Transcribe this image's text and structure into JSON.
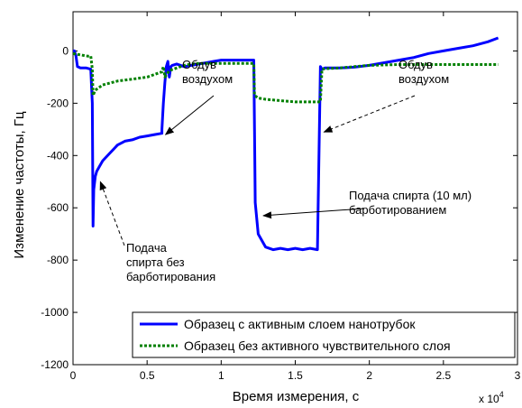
{
  "chart_data": {
    "type": "line",
    "title": "",
    "xlabel": "Время измерения, с",
    "ylabel": "Изменение частоты, Гц",
    "x_multiplier_label": "x 10",
    "x_multiplier_exp": "4",
    "xlim": [
      0,
      3
    ],
    "ylim": [
      -1200,
      150
    ],
    "x_ticks": [
      0,
      0.5,
      1,
      1.5,
      2,
      2.5,
      3
    ],
    "x_tick_labels": [
      "0",
      "0.5",
      "1",
      "1.5",
      "2",
      "2.5",
      "3"
    ],
    "y_ticks": [
      -1200,
      -1000,
      -800,
      -600,
      -400,
      -200,
      0
    ],
    "y_tick_labels": [
      "-1200",
      "-1000",
      "-800",
      "-600",
      "-400",
      "-200",
      "0"
    ],
    "grid": false,
    "legend_position": "bottom-right",
    "series": [
      {
        "name": "Образец с активным слоем нанотрубок",
        "color": "#0000ff",
        "style": "solid",
        "x": [
          0,
          0.01,
          0.02,
          0.03,
          0.05,
          0.09,
          0.12,
          0.13,
          0.135,
          0.14,
          0.15,
          0.16,
          0.18,
          0.2,
          0.25,
          0.3,
          0.35,
          0.4,
          0.45,
          0.5,
          0.55,
          0.6,
          0.6,
          0.61,
          0.62,
          0.63,
          0.64,
          0.65,
          0.66,
          0.67,
          0.7,
          0.75,
          0.8,
          0.85,
          0.9,
          0.95,
          1,
          1.05,
          1.1,
          1.2,
          1.22,
          1.225,
          1.23,
          1.25,
          1.3,
          1.35,
          1.4,
          1.45,
          1.5,
          1.55,
          1.6,
          1.65,
          1.67,
          1.68,
          1.7,
          1.8,
          1.9,
          2,
          2.1,
          2.2,
          2.3,
          2.4,
          2.5,
          2.6,
          2.7,
          2.8,
          2.87
        ],
        "values": [
          0,
          0,
          -20,
          -60,
          -65,
          -65,
          -70,
          -200,
          -670,
          -530,
          -480,
          -460,
          -440,
          -420,
          -390,
          -360,
          -345,
          -340,
          -330,
          -325,
          -320,
          -315,
          -300,
          -200,
          -120,
          -60,
          -40,
          -100,
          -60,
          -55,
          -50,
          -60,
          -55,
          -50,
          -45,
          -40,
          -35,
          -35,
          -35,
          -35,
          -35,
          -300,
          -580,
          -700,
          -750,
          -760,
          -755,
          -760,
          -755,
          -760,
          -755,
          -760,
          -60,
          -70,
          -65,
          -65,
          -62,
          -55,
          -45,
          -35,
          -25,
          -10,
          0,
          10,
          20,
          35,
          50
        ]
      },
      {
        "name": "Образец без активного чувствительного слоя",
        "color": "#008000",
        "style": "dotted",
        "x": [
          0,
          0.05,
          0.1,
          0.12,
          0.13,
          0.135,
          0.15,
          0.2,
          0.3,
          0.4,
          0.5,
          0.55,
          0.6,
          0.61,
          0.62,
          0.65,
          0.7,
          0.75,
          0.8,
          0.85,
          0.9,
          1,
          1.1,
          1.2,
          1.22,
          1.225,
          1.25,
          1.3,
          1.4,
          1.5,
          1.6,
          1.65,
          1.67,
          1.68,
          1.7,
          1.8,
          1.9,
          2,
          2.2,
          2.4,
          2.6,
          2.87
        ],
        "values": [
          -10,
          -15,
          -20,
          -20,
          -70,
          -170,
          -150,
          -130,
          -115,
          -108,
          -100,
          -90,
          -80,
          -60,
          -100,
          -75,
          -65,
          -55,
          -50,
          -48,
          -48,
          -48,
          -48,
          -48,
          -48,
          -170,
          -180,
          -185,
          -190,
          -195,
          -195,
          -195,
          -195,
          -70,
          -68,
          -65,
          -60,
          -55,
          -52,
          -52,
          -52,
          -52
        ]
      }
    ],
    "annotations": [
      {
        "lines": [
          "Обдув",
          "воздухом"
        ],
        "arrow_style": "solid",
        "target_x": 0.6,
        "target_y": -320
      },
      {
        "lines": [
          "Обдув",
          "воздухом"
        ],
        "arrow_style": "dashed",
        "target_x": 1.67,
        "target_y": -310
      },
      {
        "lines": [
          "Подача спирта (10 мл)",
          "барботированием"
        ],
        "arrow_style": "solid",
        "target_x": 1.26,
        "target_y": -630
      },
      {
        "lines": [
          "Подача",
          "спирта без",
          "барботирования"
        ],
        "arrow_style": "dashed",
        "target_x": 0.16,
        "target_y": -500
      }
    ]
  }
}
